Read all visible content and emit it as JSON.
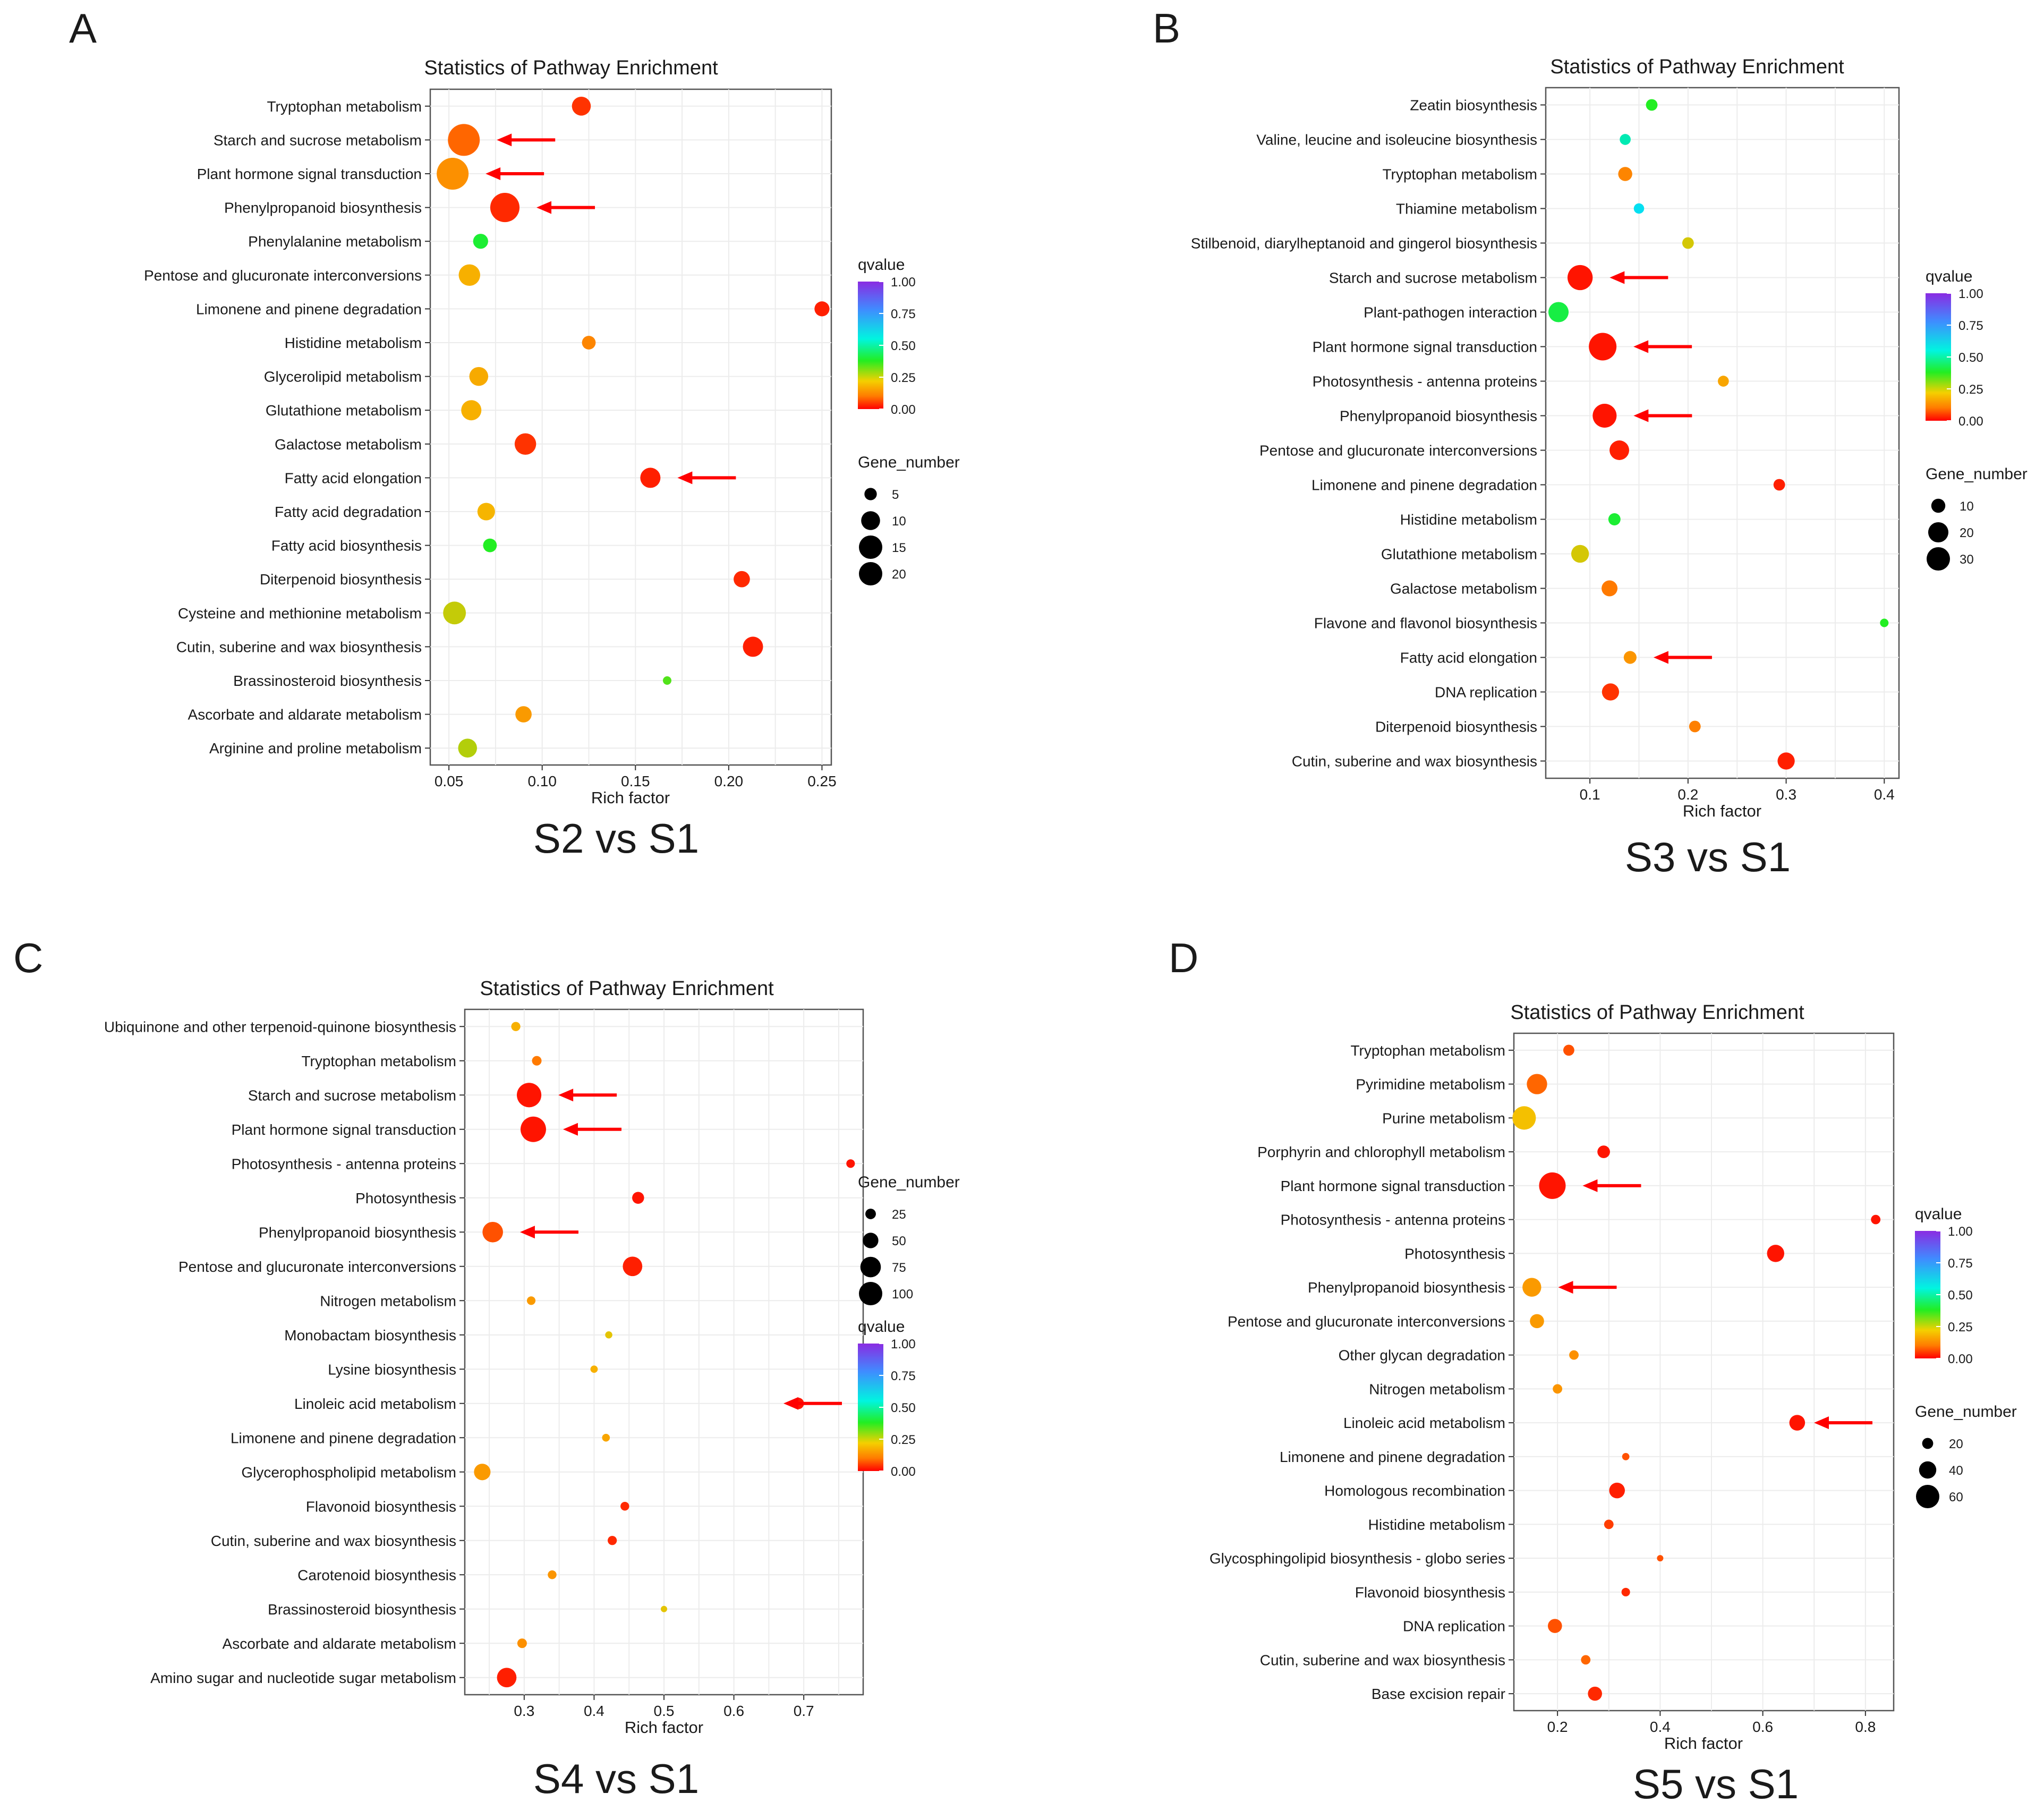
{
  "figure": {
    "panels": [
      "A",
      "B",
      "C",
      "D"
    ]
  },
  "chart_data": [
    {
      "panel": "A",
      "type": "scatter",
      "title": "Statistics of Pathway Enrichment",
      "xlabel": "Rich factor",
      "comparison": "S2 vs S1",
      "xlim": [
        0.04,
        0.255
      ],
      "xticks": [
        0.05,
        0.1,
        0.15,
        0.2,
        0.25
      ],
      "xtick_labels": [
        "0.05",
        "0.10",
        "0.15",
        "0.20",
        "0.25"
      ],
      "size_legend": {
        "title": "Gene_number",
        "values": [
          5,
          10,
          15,
          20
        ]
      },
      "color_legend": {
        "title": "qvalue",
        "ticks": [
          "1.00",
          "0.75",
          "0.50",
          "0.25",
          "0.00"
        ]
      },
      "categories": [
        "Tryptophan metabolism",
        "Starch and sucrose metabolism",
        "Plant hormone signal transduction",
        "Phenylpropanoid biosynthesis",
        "Phenylalanine metabolism",
        "Pentose and glucuronate interconversions",
        "Limonene and pinene degradation",
        "Histidine metabolism",
        "Glycerolipid metabolism",
        "Glutathione metabolism",
        "Galactose metabolism",
        "Fatty acid elongation",
        "Fatty acid degradation",
        "Fatty acid biosynthesis",
        "Diterpenoid biosynthesis",
        "Cysteine and methionine metabolism",
        "Cutin, suberine and wax biosynthesis",
        "Brassinosteroid biosynthesis",
        "Ascorbate and aldarate metabolism",
        "Arginine and proline metabolism"
      ],
      "rich_factor": [
        0.121,
        0.058,
        0.052,
        0.08,
        0.067,
        0.061,
        0.25,
        0.125,
        0.066,
        0.062,
        0.091,
        0.158,
        0.07,
        0.072,
        0.207,
        0.053,
        0.213,
        0.167,
        0.09,
        0.06
      ],
      "gene_number": [
        10,
        20,
        20,
        18,
        7,
        12,
        7,
        6,
        10,
        11,
        12,
        11,
        9,
        6,
        8,
        13,
        11,
        2,
        8,
        10
      ],
      "qvalue": [
        0.05,
        0.1,
        0.16,
        0.04,
        0.4,
        0.22,
        0.03,
        0.14,
        0.21,
        0.22,
        0.05,
        0.03,
        0.23,
        0.38,
        0.04,
        0.28,
        0.03,
        0.35,
        0.18,
        0.29
      ],
      "arrows": [
        "Starch and sucrose metabolism",
        "Plant hormone signal transduction",
        "Phenylpropanoid biosynthesis",
        "Fatty acid elongation"
      ]
    },
    {
      "panel": "B",
      "type": "scatter",
      "title": "Statistics of Pathway Enrichment",
      "xlabel": "Rich factor",
      "comparison": "S3 vs S1",
      "xlim": [
        0.055,
        0.415
      ],
      "xticks": [
        0.1,
        0.2,
        0.3,
        0.4
      ],
      "xtick_labels": [
        "0.1",
        "0.2",
        "0.3",
        "0.4"
      ],
      "size_legend": {
        "title": "Gene_number",
        "values": [
          10,
          20,
          30
        ]
      },
      "color_legend": {
        "title": "qvalue",
        "ticks": [
          "1.00",
          "0.75",
          "0.50",
          "0.25",
          "0.00"
        ]
      },
      "categories": [
        "Zeatin biosynthesis",
        "Valine, leucine and isoleucine biosynthesis",
        "Tryptophan metabolism",
        "Thiamine metabolism",
        "Stilbenoid, diarylheptanoid and gingerol biosynthesis",
        "Starch and sucrose metabolism",
        "Plant-pathogen interaction",
        "Plant hormone signal transduction",
        "Photosynthesis - antenna proteins",
        "Phenylpropanoid biosynthesis",
        "Pentose and glucuronate interconversions",
        "Limonene and pinene degradation",
        "Histidine metabolism",
        "Glutathione metabolism",
        "Galactose metabolism",
        "Flavone and flavonol biosynthesis",
        "Fatty acid elongation",
        "DNA replication",
        "Diterpenoid biosynthesis",
        "Cutin, suberine and wax biosynthesis"
      ],
      "rich_factor": [
        0.163,
        0.136,
        0.136,
        0.15,
        0.2,
        0.09,
        0.068,
        0.113,
        0.236,
        0.115,
        0.13,
        0.293,
        0.125,
        0.09,
        0.12,
        0.4,
        0.141,
        0.121,
        0.207,
        0.3
      ],
      "gene_number": [
        6,
        5,
        10,
        4,
        6,
        28,
        20,
        32,
        5,
        26,
        19,
        6,
        7,
        16,
        13,
        1,
        8,
        15,
        6,
        15
      ],
      "qvalue": [
        0.38,
        0.55,
        0.14,
        0.63,
        0.27,
        0.02,
        0.42,
        0.02,
        0.2,
        0.02,
        0.03,
        0.03,
        0.4,
        0.27,
        0.12,
        0.38,
        0.17,
        0.05,
        0.13,
        0.03
      ],
      "arrows": [
        "Starch and sucrose metabolism",
        "Plant hormone signal transduction",
        "Phenylpropanoid biosynthesis",
        "Fatty acid elongation"
      ]
    },
    {
      "panel": "C",
      "type": "scatter",
      "title": "Statistics of Pathway Enrichment",
      "xlabel": "Rich factor",
      "comparison": "S4 vs S1",
      "xlim": [
        0.215,
        0.785
      ],
      "xticks": [
        0.3,
        0.4,
        0.5,
        0.6,
        0.7
      ],
      "xtick_labels": [
        "0.3",
        "0.4",
        "0.5",
        "0.6",
        "0.7"
      ],
      "size_legend": {
        "title": "Gene_number",
        "values": [
          25,
          50,
          75,
          100
        ]
      },
      "color_legend": {
        "title": "qvalue",
        "ticks": [
          "1.00",
          "0.75",
          "0.50",
          "0.25",
          "0.00"
        ]
      },
      "categories": [
        "Ubiquinone and other terpenoid-quinone biosynthesis",
        "Tryptophan metabolism",
        "Starch and sucrose metabolism",
        "Plant hormone signal transduction",
        "Photosynthesis - antenna proteins",
        "Photosynthesis",
        "Phenylpropanoid biosynthesis",
        "Pentose and glucuronate interconversions",
        "Nitrogen metabolism",
        "Monobactam biosynthesis",
        "Lysine biosynthesis",
        "Linoleic acid metabolism",
        "Limonene and pinene degradation",
        "Glycerophospholipid metabolism",
        "Flavonoid biosynthesis",
        "Cutin, suberine and wax biosynthesis",
        "Carotenoid biosynthesis",
        "Brassinosteroid biosynthesis",
        "Ascorbate and aldarate metabolism",
        "Amino sugar and nucleotide sugar metabolism"
      ],
      "rich_factor": [
        0.288,
        0.318,
        0.307,
        0.313,
        0.767,
        0.463,
        0.255,
        0.455,
        0.31,
        0.421,
        0.4,
        0.692,
        0.417,
        0.24,
        0.444,
        0.426,
        0.34,
        0.5,
        0.297,
        0.275
      ],
      "gene_number": [
        18,
        20,
        95,
        100,
        15,
        32,
        75,
        70,
        15,
        8,
        9,
        30,
        11,
        55,
        16,
        18,
        16,
        4,
        20,
        70
      ],
      "qvalue": [
        0.22,
        0.12,
        0.02,
        0.02,
        0.02,
        0.02,
        0.08,
        0.03,
        0.18,
        0.26,
        0.22,
        0.02,
        0.2,
        0.18,
        0.04,
        0.04,
        0.17,
        0.26,
        0.16,
        0.03
      ],
      "arrows": [
        "Starch and sucrose metabolism",
        "Plant hormone signal transduction",
        "Phenylpropanoid biosynthesis",
        "Linoleic acid metabolism"
      ]
    },
    {
      "panel": "D",
      "type": "scatter",
      "title": "Statistics of Pathway Enrichment",
      "xlabel": "Rich factor",
      "comparison": "S5 vs S1",
      "xlim": [
        0.115,
        0.855
      ],
      "xticks": [
        0.2,
        0.4,
        0.6,
        0.8
      ],
      "xtick_labels": [
        "0.2",
        "0.4",
        "0.6",
        "0.8"
      ],
      "size_legend": {
        "title": "Gene_number",
        "values": [
          20,
          40,
          60
        ]
      },
      "color_legend": {
        "title": "qvalue",
        "ticks": [
          "1.00",
          "0.75",
          "0.50",
          "0.25",
          "0.00"
        ]
      },
      "categories": [
        "Tryptophan metabolism",
        "Pyrimidine metabolism",
        "Purine metabolism",
        "Porphyrin and chlorophyll metabolism",
        "Plant hormone signal transduction",
        "Photosynthesis - antenna proteins",
        "Photosynthesis",
        "Phenylpropanoid biosynthesis",
        "Pentose and glucuronate interconversions",
        "Other glycan degradation",
        "Nitrogen metabolism",
        "Linoleic acid metabolism",
        "Limonene and pinene degradation",
        "Homologous recombination",
        "Histidine metabolism",
        "Glycosphingolipid biosynthesis - globo series",
        "Flavonoid biosynthesis",
        "DNA replication",
        "Cutin, suberine and wax biosynthesis",
        "Base excision repair"
      ],
      "rich_factor": [
        0.222,
        0.16,
        0.135,
        0.29,
        0.19,
        0.82,
        0.625,
        0.15,
        0.16,
        0.232,
        0.2,
        0.667,
        0.333,
        0.316,
        0.3,
        0.4,
        0.333,
        0.195,
        0.255,
        0.273
      ],
      "gene_number": [
        20,
        50,
        60,
        25,
        70,
        15,
        40,
        45,
        30,
        15,
        15,
        35,
        8,
        35,
        15,
        5,
        12,
        30,
        15,
        30
      ],
      "qvalue": [
        0.08,
        0.1,
        0.25,
        0.02,
        0.02,
        0.02,
        0.02,
        0.18,
        0.18,
        0.16,
        0.17,
        0.02,
        0.08,
        0.03,
        0.06,
        0.08,
        0.04,
        0.08,
        0.1,
        0.04
      ],
      "arrows": [
        "Plant hormone signal transduction",
        "Phenylpropanoid biosynthesis",
        "Linoleic acid metabolism"
      ]
    }
  ]
}
